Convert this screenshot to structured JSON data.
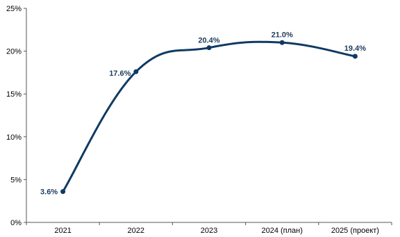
{
  "chart_data": {
    "type": "line",
    "categories": [
      "2021",
      "2022",
      "2023",
      "2024 (план)",
      "2025 (проект)"
    ],
    "series": [
      {
        "values": [
          3.6,
          17.6,
          20.4,
          21.0,
          19.4
        ]
      }
    ],
    "data_labels": [
      "3.6%",
      "17.6%",
      "20.4%",
      "21.0%",
      "19.4%"
    ],
    "y_ticks": [
      0,
      5,
      10,
      15,
      20,
      25
    ],
    "y_tick_labels": [
      "0%",
      "5%",
      "10%",
      "15%",
      "20%",
      "25%"
    ],
    "ylim": [
      0,
      25
    ],
    "grid": false,
    "smooth": true,
    "line_color": "#0f3a63",
    "label_color": "#1f3b5c",
    "axis_color": "#555555"
  }
}
